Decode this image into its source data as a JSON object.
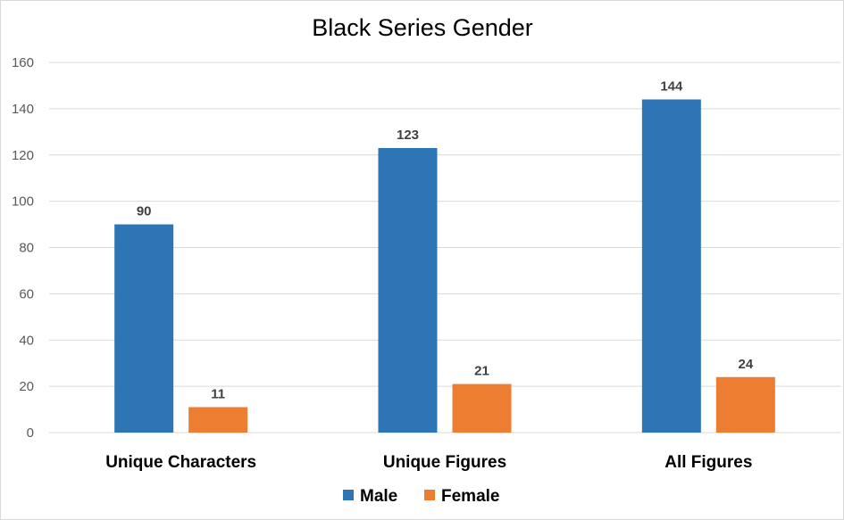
{
  "chart_data": {
    "type": "bar",
    "title": "Black Series Gender",
    "xlabel": "",
    "ylabel": "",
    "categories": [
      "Unique Characters",
      "Unique Figures",
      "All Figures"
    ],
    "series": [
      {
        "name": "Male",
        "values": [
          90,
          123,
          144
        ],
        "color": "#2e75b6"
      },
      {
        "name": "Female",
        "values": [
          11,
          21,
          24
        ],
        "color": "#ed7d31"
      }
    ],
    "ylim": [
      0,
      160
    ],
    "yticks": [
      0,
      20,
      40,
      60,
      80,
      100,
      120,
      140,
      160
    ],
    "grid": true,
    "legend_position": "bottom",
    "data_labels": true
  }
}
